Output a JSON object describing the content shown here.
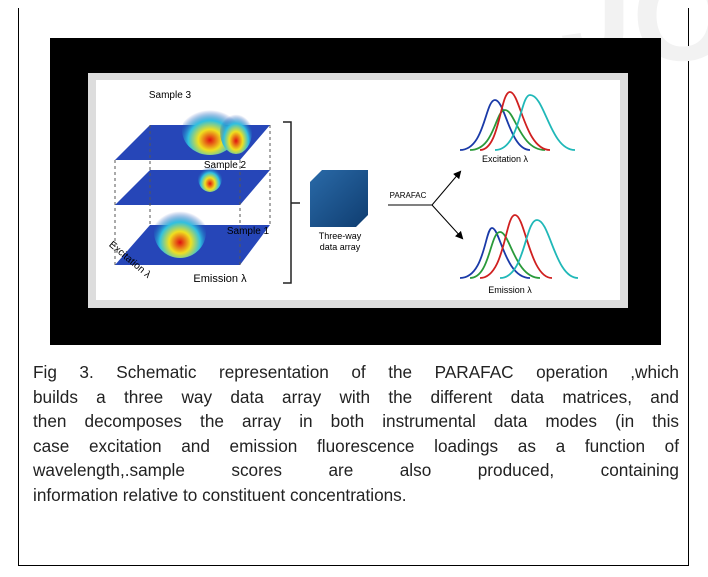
{
  "figure": {
    "samples": [
      "Sample 3",
      "Sample 2",
      "Sample 1"
    ],
    "axis_excitation": "Excitation λ",
    "axis_emission": "Emission λ",
    "array_label": [
      "Three-way",
      "data array"
    ],
    "method": "PARAFAC",
    "output_excitation": "Excitation λ",
    "output_emission": "Emission λ"
  },
  "caption": {
    "lines": [
      "Fig 3. Schematic representation of the PARAFAC operation ,which",
      "builds a three way data array with the different data matrices, and",
      "then decomposes the array in both instrumental data modes (in this",
      "case excitation and emission fluorescence loadings as a function of",
      "wavelength,.sample   scores   are   also   produced,   containing",
      "information relative to constituent concentrations."
    ]
  }
}
